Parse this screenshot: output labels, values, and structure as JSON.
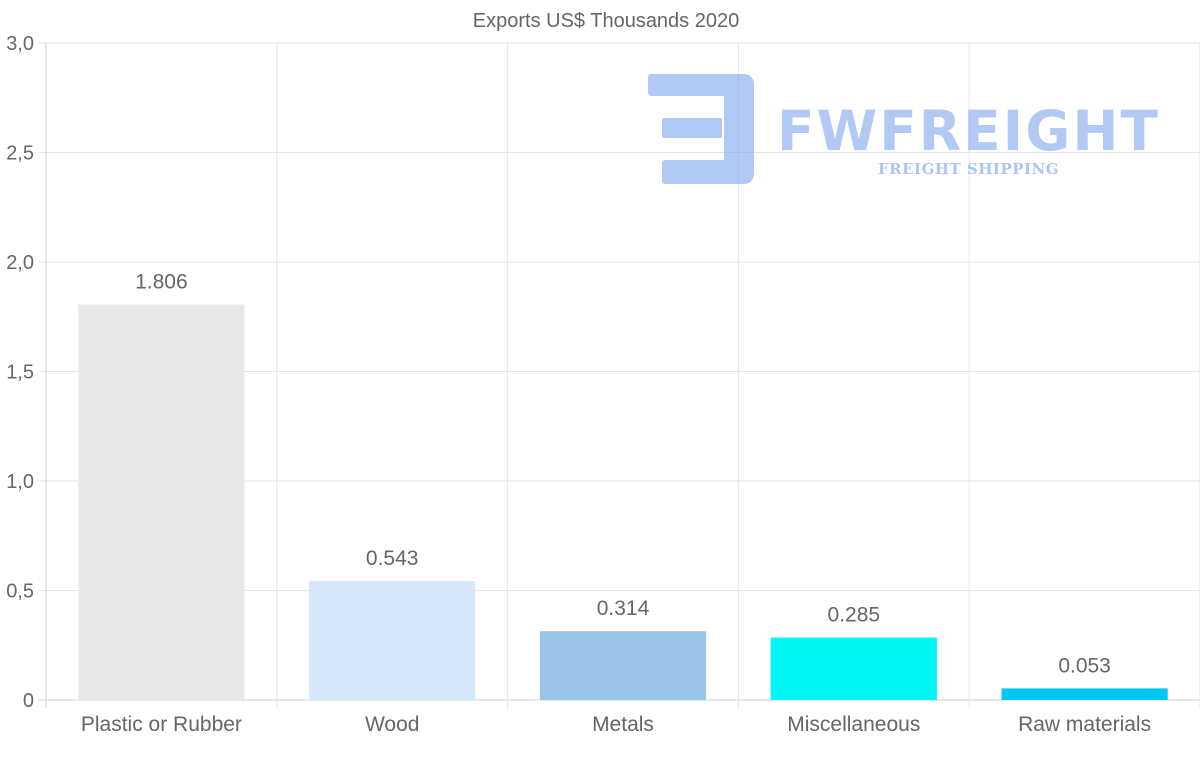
{
  "chart_data": {
    "type": "bar",
    "title": "Exports US$ Thousands 2020",
    "categories": [
      "Plastic or Rubber",
      "Wood",
      "Metals",
      "Miscellaneous",
      "Raw materials"
    ],
    "values": [
      1.806,
      0.543,
      0.314,
      0.285,
      0.053
    ],
    "value_labels": [
      "1.806",
      "0.543",
      "0.314",
      "0.285",
      "0.053"
    ],
    "colors": [
      "#e8e8e8",
      "#d6e7f8",
      "#9cc4e8",
      "#00f5f5",
      "#00c8f5"
    ],
    "ylim": [
      0,
      3
    ],
    "yticks": [
      0,
      0.5,
      1,
      1.5,
      2,
      2.5,
      3
    ],
    "ytick_labels": [
      "0",
      "0,5",
      "1,0",
      "1,5",
      "2,0",
      "2,5",
      "3,0"
    ],
    "xlabel": "",
    "ylabel": "",
    "grid": true,
    "legend": "none"
  },
  "watermark": {
    "name": "FWFREIGHT",
    "tagline": "FREIGHT SHIPPING",
    "color": "#7fa8ec"
  }
}
